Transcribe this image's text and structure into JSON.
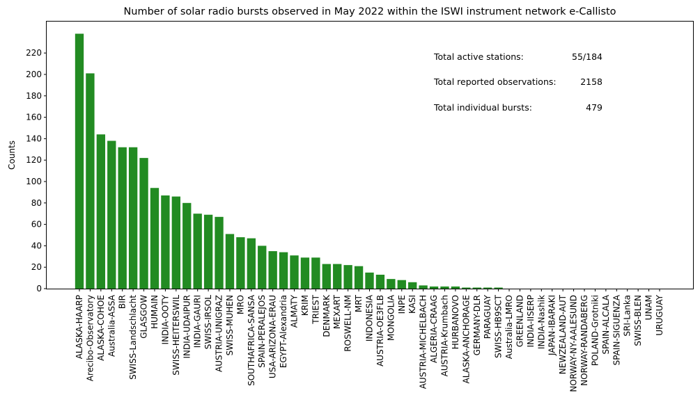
{
  "chart_data": {
    "type": "bar",
    "title": "Number of solar radio bursts observed in May 2022 within the ISWI instrument network e-Callisto",
    "xlabel": "",
    "ylabel": "Counts",
    "ylim": [
      0,
      250
    ],
    "yticks": [
      0,
      20,
      40,
      60,
      80,
      100,
      120,
      140,
      160,
      180,
      200,
      220
    ],
    "bar_color": "#228b22",
    "grid": false,
    "categories": [
      "ALASKA-HAARP",
      "Arecibo-Observatory",
      "ALASKA-COHOE",
      "Australia-ASSA",
      "BIR",
      "SWISS-Landschlacht",
      "GLASGOW",
      "HUMAIN",
      "INDIA-OOTY",
      "SWISS-HEITERSWIL",
      "INDIA-UDAIPUR",
      "INDIA-GAURI",
      "SWISS-IRSOL",
      "AUSTRIA-UNIGRAZ",
      "SWISS-MUHEN",
      "MRO",
      "SOUTHAFRICA-SANSA",
      "SPAIN-PERALEJOS",
      "USA-ARIZONA-ERAU",
      "EGYPT-Alexandria",
      "ALMATY",
      "KRIM",
      "TRIEST",
      "DENMARK",
      "MEXART",
      "ROSWELL-NM",
      "MRT",
      "INDONESIA",
      "AUSTRIA-OE3FLB",
      "MONGOLIA",
      "INPE",
      "KASI",
      "AUSTRIA-MICHELBACH",
      "ALGERIA-CRAAG",
      "AUSTRIA-Krumbach",
      "HURBANOVO",
      "ALASKA-ANCHORAGE",
      "GERMANY-DLR",
      "PARAGUAY",
      "SWISS-HB9SCT",
      "Australia-LMRO",
      "GREENLAND",
      "INDIA-IISERP",
      "INDIA-Nashik",
      "JAPAN-IBARAKI",
      "NEWZEALAND-AUT",
      "NORWAY-NY-AALESUND",
      "NORWAY-RANDABERG",
      "POLAND-Grotniki",
      "SPAIN-ALCALA",
      "SPAIN-SIGUENZA",
      "SRI-Lanka",
      "SWISS-BLEN",
      "UNAM",
      "URUGUAY"
    ],
    "values": [
      238,
      201,
      144,
      138,
      132,
      132,
      122,
      94,
      87,
      86,
      80,
      70,
      69,
      67,
      51,
      48,
      47,
      40,
      35,
      34,
      31,
      29,
      29,
      23,
      23,
      22,
      21,
      15,
      13,
      9,
      8,
      6,
      3,
      2,
      2,
      2,
      1,
      1,
      1,
      1,
      0,
      0,
      0,
      0,
      0,
      0,
      0,
      0,
      0,
      0,
      0,
      0,
      0,
      0,
      0
    ],
    "annotations": [
      {
        "label": "Total active stations:",
        "value": "55/184"
      },
      {
        "label": "Total reported observations:",
        "value": "2158"
      },
      {
        "label": "Total individual bursts:",
        "value": "479"
      }
    ]
  }
}
